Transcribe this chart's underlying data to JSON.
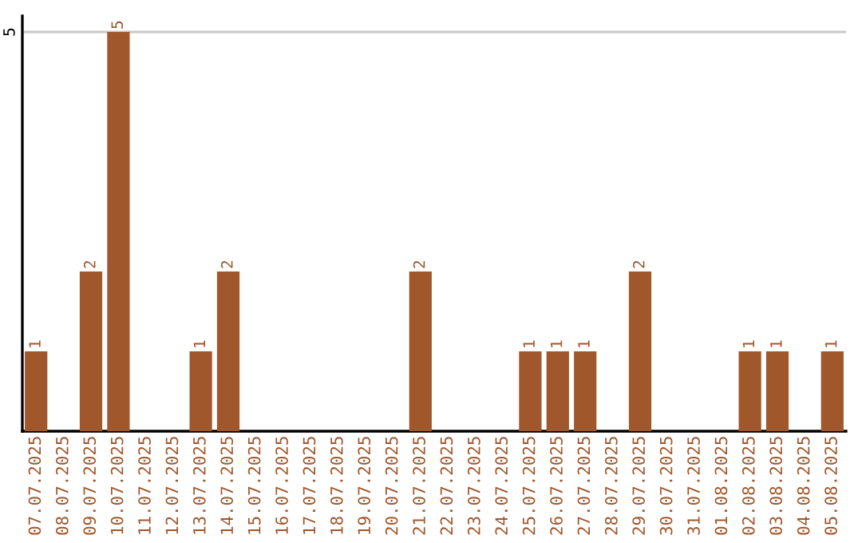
{
  "chart_data": {
    "type": "bar",
    "categories": [
      "07.07.2025",
      "08.07.2025",
      "09.07.2025",
      "10.07.2025",
      "11.07.2025",
      "12.07.2025",
      "13.07.2025",
      "14.07.2025",
      "15.07.2025",
      "16.07.2025",
      "17.07.2025",
      "18.07.2025",
      "19.07.2025",
      "20.07.2025",
      "21.07.2025",
      "22.07.2025",
      "23.07.2025",
      "24.07.2025",
      "25.07.2025",
      "26.07.2025",
      "27.07.2025",
      "28.07.2025",
      "29.07.2025",
      "30.07.2025",
      "31.07.2025",
      "01.08.2025",
      "02.08.2025",
      "03.08.2025",
      "04.08.2025",
      "05.08.2025"
    ],
    "values": [
      1,
      0,
      2,
      5,
      0,
      0,
      1,
      2,
      0,
      0,
      0,
      0,
      0,
      0,
      2,
      0,
      0,
      0,
      1,
      1,
      1,
      0,
      2,
      0,
      0,
      0,
      1,
      1,
      0,
      1
    ],
    "value_labels": [
      "1",
      null,
      "2",
      "5",
      null,
      null,
      "1",
      "2",
      null,
      null,
      null,
      null,
      null,
      null,
      "2",
      null,
      null,
      null,
      "1",
      "1",
      "1",
      null,
      "2",
      null,
      null,
      null,
      "1",
      "1",
      null,
      "1"
    ],
    "color": "#a0572b",
    "ylim": [
      0,
      5.2
    ],
    "yticks": [
      5
    ],
    "grid": "y",
    "legend": false
  }
}
